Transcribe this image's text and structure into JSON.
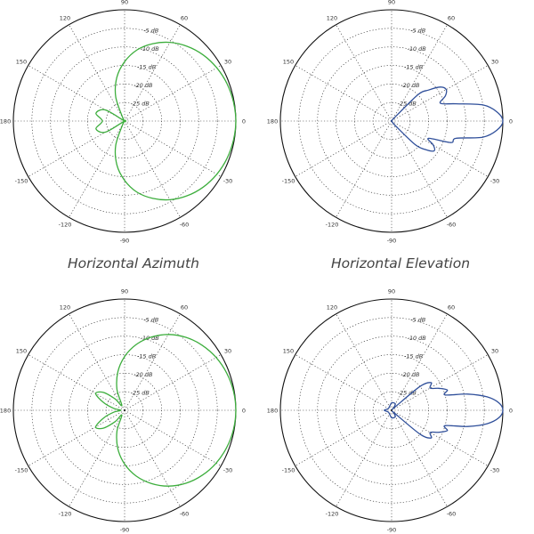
{
  "captions": {
    "top_left": "Horizontal Azimuth",
    "top_right": "Horizontal Elevation"
  },
  "chart_data": [
    {
      "type": "polar",
      "title": "",
      "color": "#3dae3d",
      "angle_labels": [
        "90",
        "60",
        "30",
        "0",
        "-30",
        "-60",
        "-90",
        "-120",
        "-150",
        "180",
        "150",
        "120"
      ],
      "ring_labels": [
        "-5 dB",
        "-10 dB",
        "-15 dB",
        "-20 dB",
        "-25 dB"
      ],
      "r_unit": "dB",
      "r_range": [
        -30,
        0
      ],
      "series": [
        {
          "angle_deg": [
            0,
            10,
            20,
            30,
            40,
            50,
            60,
            70,
            80,
            90,
            100,
            110,
            120,
            135,
            150,
            165,
            180,
            195,
            210,
            225,
            240,
            250,
            260,
            270,
            280,
            290,
            300,
            310,
            320,
            330,
            340,
            350
          ],
          "gain_db": [
            0,
            -0.2,
            -0.6,
            -1.3,
            -2.3,
            -3.7,
            -5.5,
            -7.8,
            -10.5,
            -14,
            -18,
            -23,
            -29,
            -30,
            -24,
            -22,
            -24,
            -22,
            -24,
            -30,
            -29,
            -23,
            -18,
            -14,
            -10.5,
            -7.8,
            -5.5,
            -3.7,
            -2.3,
            -1.3,
            -0.6,
            -0.2
          ]
        }
      ]
    },
    {
      "type": "polar",
      "title": "",
      "color": "#2f4f9a",
      "angle_labels": [
        "90",
        "60",
        "30",
        "0",
        "-30",
        "-60",
        "-90",
        "-120",
        "-150",
        "180",
        "150",
        "120"
      ],
      "ring_labels": [
        "-5 dB",
        "-10 dB",
        "-15 dB",
        "-20 dB",
        "-25 dB"
      ],
      "r_unit": "dB",
      "r_range": [
        -30,
        0
      ],
      "series": [
        {
          "angle_deg": [
            0,
            5,
            10,
            15,
            20,
            25,
            30,
            35,
            40,
            45,
            50,
            60,
            90,
            180,
            270,
            300,
            310,
            315,
            320,
            325,
            330,
            335,
            340,
            345,
            350,
            355
          ],
          "gain_db": [
            0,
            -1.5,
            -5,
            -12,
            -16,
            -14,
            -13,
            -14,
            -17,
            -20,
            -29,
            -30,
            -30,
            -30,
            -30,
            -30,
            -28,
            -21,
            -18,
            -16,
            -17,
            -19,
            -13,
            -12,
            -5,
            -1.5
          ]
        }
      ]
    },
    {
      "type": "polar",
      "title": "",
      "color": "#3dae3d",
      "angle_labels": [
        "90",
        "60",
        "30",
        "0",
        "-30",
        "-60",
        "-90",
        "-120",
        "-150",
        "180",
        "150",
        "120"
      ],
      "ring_labels": [
        "-5 dB",
        "-10 dB",
        "-15 dB",
        "-20 dB",
        "-25 dB"
      ],
      "r_unit": "dB",
      "r_range": [
        -30,
        0
      ],
      "series": [
        {
          "angle_deg": [
            0,
            10,
            20,
            30,
            40,
            50,
            60,
            70,
            80,
            90,
            100,
            110,
            120,
            130,
            140,
            150,
            160,
            170,
            180,
            190,
            200,
            210,
            220,
            230,
            240,
            250,
            260,
            270,
            280,
            290,
            300,
            310,
            320,
            330,
            340,
            350
          ],
          "gain_db": [
            0,
            -0.2,
            -0.7,
            -1.5,
            -2.7,
            -4.3,
            -6.4,
            -9,
            -12,
            -15.5,
            -19.5,
            -24,
            -28.5,
            -26,
            -22.5,
            -21,
            -24,
            -27,
            -29,
            -27,
            -24,
            -21,
            -22.5,
            -26,
            -28.5,
            -24,
            -19.5,
            -15.5,
            -12,
            -9,
            -6.4,
            -4.3,
            -2.7,
            -1.5,
            -0.7,
            -0.2
          ]
        }
      ]
    },
    {
      "type": "polar",
      "title": "",
      "color": "#2f4f9a",
      "angle_labels": [
        "90",
        "60",
        "30",
        "0",
        "-30",
        "-60",
        "-90",
        "-120",
        "-150",
        "180",
        "150",
        "120"
      ],
      "ring_labels": [
        "-5 dB",
        "-10 dB",
        "-15 dB",
        "-20 dB",
        "-25 dB"
      ],
      "r_unit": "dB",
      "r_range": [
        -30,
        0
      ],
      "series": [
        {
          "angle_deg": [
            0,
            4,
            8,
            12,
            16,
            20,
            25,
            30,
            35,
            40,
            45,
            50,
            60,
            90,
            150,
            180,
            210,
            270,
            300,
            310,
            315,
            320,
            325,
            330,
            335,
            340,
            344,
            348,
            352,
            356
          ],
          "gain_db": [
            0,
            -1,
            -4,
            -9,
            -15,
            -14,
            -16,
            -18,
            -17,
            -20,
            -29,
            -29,
            -28,
            -28,
            -29,
            -28,
            -29,
            -28,
            -28,
            -29,
            -29,
            -20,
            -17,
            -18,
            -16,
            -14,
            -15,
            -9,
            -4,
            -1
          ]
        }
      ]
    }
  ]
}
